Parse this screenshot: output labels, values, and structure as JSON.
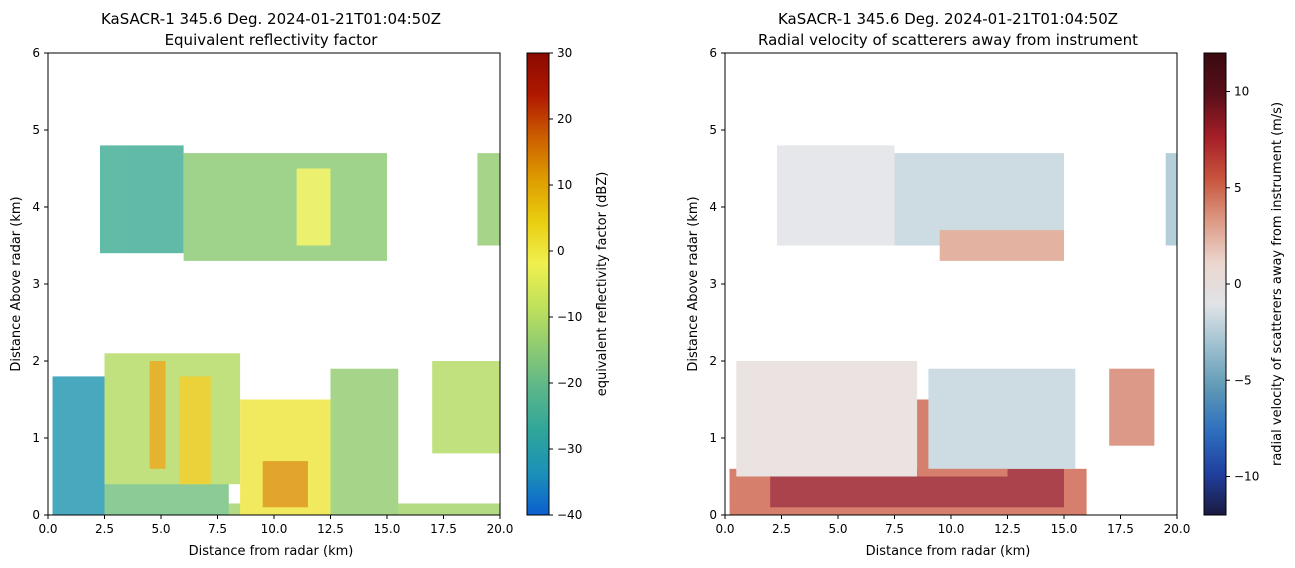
{
  "chart_data": [
    {
      "type": "heatmap",
      "title": "KaSACR-1 345.6 Deg. 2024-01-21T01:04:50Z",
      "subtitle": "Equivalent reflectivity factor",
      "xlabel": "Distance from radar (km)",
      "ylabel": "Distance Above radar  (km)",
      "xlim": [
        0,
        20
      ],
      "ylim": [
        0,
        6
      ],
      "xticks": [
        0.0,
        2.5,
        5.0,
        7.5,
        10.0,
        12.5,
        15.0,
        17.5,
        20.0
      ],
      "xtick_labels": [
        "0.0",
        "2.5",
        "5.0",
        "7.5",
        "10.0",
        "12.5",
        "15.0",
        "17.5",
        "20.0"
      ],
      "yticks": [
        0,
        1,
        2,
        3,
        4,
        5,
        6
      ],
      "ytick_labels": [
        "0",
        "1",
        "2",
        "3",
        "4",
        "5",
        "6"
      ],
      "colorbar": {
        "label": "equivalent reflectivity factor (dBZ)",
        "range": [
          -40,
          30
        ],
        "ticks": [
          -40,
          -30,
          -20,
          -10,
          0,
          10,
          20,
          30
        ],
        "tick_labels": [
          "−40",
          "−30",
          "−20",
          "−10",
          "0",
          "10",
          "20",
          "30"
        ],
        "colormap": [
          "#0a5fcf",
          "#1c90b8",
          "#2fa69a",
          "#5bb68a",
          "#8fcb72",
          "#c2e25a",
          "#f0f04e",
          "#e9cd10",
          "#de9c00",
          "#cc5e00",
          "#b01800",
          "#8a0a00"
        ]
      },
      "regions": [
        {
          "x": [
            0.2,
            20.0
          ],
          "y": [
            0.0,
            0.15
          ],
          "value": -12
        },
        {
          "x": [
            0.2,
            8.0
          ],
          "y": [
            0.0,
            1.4
          ],
          "value": -18
        },
        {
          "x": [
            0.2,
            2.5
          ],
          "y": [
            0.0,
            1.8
          ],
          "value": -32
        },
        {
          "x": [
            2.5,
            8.5
          ],
          "y": [
            0.4,
            2.1
          ],
          "value": -10
        },
        {
          "x": [
            4.5,
            5.2
          ],
          "y": [
            0.6,
            2.0
          ],
          "value": 10
        },
        {
          "x": [
            5.8,
            7.2
          ],
          "y": [
            0.4,
            1.8
          ],
          "value": 5
        },
        {
          "x": [
            8.5,
            12.5
          ],
          "y": [
            0.0,
            1.5
          ],
          "value": 0
        },
        {
          "x": [
            9.5,
            11.5
          ],
          "y": [
            0.1,
            0.7
          ],
          "value": 12
        },
        {
          "x": [
            12.5,
            15.5
          ],
          "y": [
            0.0,
            1.9
          ],
          "value": -14
        },
        {
          "x": [
            17.0,
            20.0
          ],
          "y": [
            0.8,
            2.0
          ],
          "value": -10
        },
        {
          "x": [
            2.3,
            6.0
          ],
          "y": [
            3.4,
            4.8
          ],
          "value": -25
        },
        {
          "x": [
            6.0,
            15.0
          ],
          "y": [
            3.3,
            4.7
          ],
          "value": -15
        },
        {
          "x": [
            11.0,
            12.5
          ],
          "y": [
            3.5,
            4.5
          ],
          "value": -3
        },
        {
          "x": [
            19.0,
            20.0
          ],
          "y": [
            3.5,
            4.7
          ],
          "value": -14
        }
      ]
    },
    {
      "type": "heatmap",
      "title": "KaSACR-1 345.6 Deg. 2024-01-21T01:04:50Z",
      "subtitle": "Radial velocity of scatterers away from instrument",
      "xlabel": "Distance from radar (km)",
      "ylabel": "Distance Above radar  (km)",
      "xlim": [
        0,
        20
      ],
      "ylim": [
        0,
        6
      ],
      "xticks": [
        0.0,
        2.5,
        5.0,
        7.5,
        10.0,
        12.5,
        15.0,
        17.5,
        20.0
      ],
      "xtick_labels": [
        "0.0",
        "2.5",
        "5.0",
        "7.5",
        "10.0",
        "12.5",
        "15.0",
        "17.5",
        "20.0"
      ],
      "yticks": [
        0,
        1,
        2,
        3,
        4,
        5,
        6
      ],
      "ytick_labels": [
        "0",
        "1",
        "2",
        "3",
        "4",
        "5",
        "6"
      ],
      "colorbar": {
        "label": "radial velocity of scatterers away from instrument (m/s)",
        "range": [
          -12,
          12
        ],
        "ticks": [
          -10,
          -5,
          0,
          5,
          10
        ],
        "tick_labels": [
          "−10",
          "−5",
          "0",
          "5",
          "10"
        ],
        "colormap": [
          "#1a1a40",
          "#2040a0",
          "#2e6fbf",
          "#5d98b5",
          "#9cbfcf",
          "#dfe3e6",
          "#ecd6cf",
          "#dc9a84",
          "#c8553e",
          "#a51e27",
          "#5a0f1a",
          "#3a0a10"
        ]
      },
      "regions": [
        {
          "x": [
            0.2,
            16.0
          ],
          "y": [
            0.0,
            0.6
          ],
          "value": 5
        },
        {
          "x": [
            2.0,
            15.0
          ],
          "y": [
            0.1,
            0.6
          ],
          "value": 8
        },
        {
          "x": [
            0.5,
            8.5
          ],
          "y": [
            0.5,
            2.0
          ],
          "value": 0
        },
        {
          "x": [
            8.5,
            12.5
          ],
          "y": [
            0.5,
            1.5
          ],
          "value": 5
        },
        {
          "x": [
            9.0,
            15.5
          ],
          "y": [
            0.6,
            1.9
          ],
          "value": -2
        },
        {
          "x": [
            17.0,
            19.0
          ],
          "y": [
            0.9,
            1.9
          ],
          "value": 4
        },
        {
          "x": [
            2.3,
            7.5
          ],
          "y": [
            3.5,
            4.8
          ],
          "value": -1
        },
        {
          "x": [
            7.5,
            15.0
          ],
          "y": [
            3.5,
            4.7
          ],
          "value": -2
        },
        {
          "x": [
            9.5,
            15.0
          ],
          "y": [
            3.3,
            3.7
          ],
          "value": 3
        },
        {
          "x": [
            19.5,
            20.0
          ],
          "y": [
            3.5,
            4.7
          ],
          "value": -3
        }
      ]
    }
  ]
}
